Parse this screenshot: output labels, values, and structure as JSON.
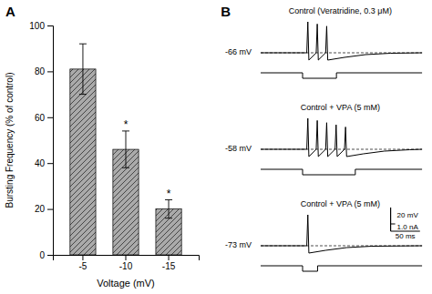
{
  "chart_data": [
    {
      "type": "bar",
      "label": "A",
      "categories": [
        "-5",
        "-10",
        "-15"
      ],
      "values": [
        81,
        46,
        20
      ],
      "errors": [
        11,
        8,
        4
      ],
      "annotations": [
        null,
        "*",
        "*"
      ],
      "xlabel": "Voltage (mV)",
      "ylabel": "Bursting Frequency (% of control)",
      "ylim": [
        0,
        100
      ],
      "yticks": [
        0,
        20,
        40,
        60,
        80,
        100
      ],
      "color": "#aaaaaa",
      "grid": false
    },
    {
      "type": "trace",
      "label": "B",
      "series": [
        {
          "name": "Control (Veratridine, 0.3 μM)",
          "label": "-66 mV",
          "spikes": 3
        },
        {
          "name": "Control + VPA (5 mM)",
          "label": "-58 mV",
          "spikes": 5
        },
        {
          "name": "Control + VPA (5 mM)",
          "label": "-73 mV",
          "spikes": 1
        }
      ],
      "scalebar": [
        "20 mV",
        "1.0 nA",
        "50 ms"
      ]
    }
  ]
}
